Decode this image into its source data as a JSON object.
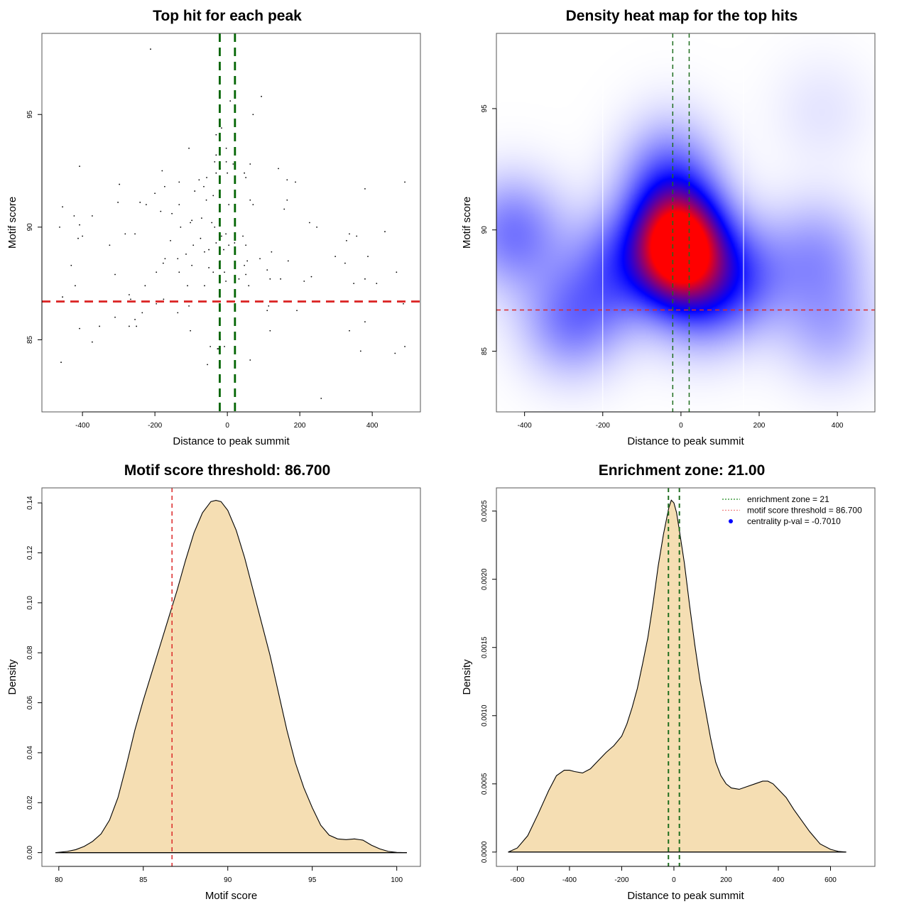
{
  "chart_data": [
    {
      "id": "scatter",
      "type": "scatter",
      "title": "Top hit for each peak",
      "xlabel": "Distance to peak summit",
      "ylabel": "Motif score",
      "xlim": [
        -512,
        533
      ],
      "ylim": [
        81.8,
        98.6
      ],
      "xticks": [
        -400,
        -200,
        0,
        200,
        400
      ],
      "yticks": [
        85,
        90,
        95
      ],
      "xtick_labels": [
        "-400",
        "-200",
        "0",
        "200",
        "400"
      ],
      "ytick_labels": [
        "85",
        "90",
        "95"
      ],
      "vlines": [
        {
          "x": -21,
          "color": "#006400",
          "style": "dashed"
        },
        {
          "x": 21,
          "color": "#006400",
          "style": "dashed"
        }
      ],
      "hlines": [
        {
          "y": 86.7,
          "color": "#dc2828",
          "style": "dashed"
        }
      ],
      "points": [
        [
          -212,
          97.9
        ],
        [
          94,
          95.8
        ],
        [
          71,
          95.0
        ],
        [
          8,
          95.6
        ],
        [
          -16,
          94.4
        ],
        [
          -31,
          94.1
        ],
        [
          -3,
          93.5
        ],
        [
          -106,
          93.5
        ],
        [
          -31,
          93.2
        ],
        [
          -35,
          92.9
        ],
        [
          -20,
          92.6
        ],
        [
          -3,
          92.9
        ],
        [
          63,
          92.8
        ],
        [
          16,
          92.8
        ],
        [
          -31,
          92.4
        ],
        [
          -180,
          92.5
        ],
        [
          -408,
          92.7
        ],
        [
          51,
          92.2
        ],
        [
          141,
          92.6
        ],
        [
          -133,
          92.0
        ],
        [
          165,
          92.1
        ],
        [
          188,
          92.0
        ],
        [
          -57,
          92.2
        ],
        [
          -90,
          91.6
        ],
        [
          0,
          92.4
        ],
        [
          47,
          92.4
        ],
        [
          -78,
          92.1
        ],
        [
          380,
          91.7
        ],
        [
          -298,
          91.9
        ],
        [
          -39,
          91.4
        ],
        [
          -58,
          91.2
        ],
        [
          -200,
          91.5
        ],
        [
          -173,
          91.8
        ],
        [
          -65,
          91.8
        ],
        [
          20,
          91.5
        ],
        [
          63,
          91.2
        ],
        [
          165,
          91.2
        ],
        [
          -133,
          91.0
        ],
        [
          4,
          91.0
        ],
        [
          157,
          90.8
        ],
        [
          -241,
          91.1
        ],
        [
          -224,
          91.0
        ],
        [
          -153,
          90.6
        ],
        [
          -184,
          90.7
        ],
        [
          -302,
          91.1
        ],
        [
          71,
          91.0
        ],
        [
          227,
          90.2
        ],
        [
          -455,
          90.9
        ],
        [
          -423,
          90.5
        ],
        [
          -373,
          90.5
        ],
        [
          -98,
          90.3
        ],
        [
          -71,
          90.4
        ],
        [
          247,
          90.0
        ],
        [
          337,
          89.7
        ],
        [
          435,
          89.8
        ],
        [
          -408,
          90.1
        ],
        [
          -102,
          90.2
        ],
        [
          -129,
          90.0
        ],
        [
          -400,
          89.6
        ],
        [
          -412,
          89.5
        ],
        [
          -255,
          89.7
        ],
        [
          -282,
          89.7
        ],
        [
          -463,
          90.0
        ],
        [
          -43,
          90.2
        ],
        [
          -35,
          90.0
        ],
        [
          -16,
          89.6
        ],
        [
          -4,
          89.7
        ],
        [
          4,
          89.2
        ],
        [
          20,
          89.3
        ],
        [
          51,
          89.2
        ],
        [
          -74,
          89.5
        ],
        [
          -31,
          89.3
        ],
        [
          -10,
          89.0
        ],
        [
          -51,
          89.0
        ],
        [
          -94,
          89.2
        ],
        [
          -157,
          89.4
        ],
        [
          -325,
          89.2
        ],
        [
          329,
          89.4
        ],
        [
          357,
          89.6
        ],
        [
          43,
          89.6
        ],
        [
          -63,
          88.9
        ],
        [
          -114,
          88.8
        ],
        [
          -177,
          88.4
        ],
        [
          -172,
          88.6
        ],
        [
          -137,
          88.6
        ],
        [
          -98,
          88.3
        ],
        [
          -51,
          88.2
        ],
        [
          -39,
          88.0
        ],
        [
          -20,
          88.5
        ],
        [
          -8,
          88.0
        ],
        [
          -133,
          88.0
        ],
        [
          55,
          88.5
        ],
        [
          47,
          88.3
        ],
        [
          -196,
          88.0
        ],
        [
          122,
          88.9
        ],
        [
          90,
          88.6
        ],
        [
          168,
          88.5
        ],
        [
          298,
          88.7
        ],
        [
          325,
          88.4
        ],
        [
          388,
          88.7
        ],
        [
          -431,
          88.3
        ],
        [
          -310,
          87.9
        ],
        [
          51,
          87.9
        ],
        [
          -63,
          87.4
        ],
        [
          -110,
          87.4
        ],
        [
          -4,
          87.6
        ],
        [
          20,
          87.8
        ],
        [
          32,
          87.7
        ],
        [
          59,
          87.4
        ],
        [
          118,
          87.7
        ],
        [
          147,
          87.7
        ],
        [
          110,
          88.1
        ],
        [
          232,
          87.8
        ],
        [
          212,
          87.6
        ],
        [
          412,
          87.5
        ],
        [
          380,
          87.7
        ],
        [
          349,
          87.5
        ],
        [
          -420,
          87.4
        ],
        [
          -227,
          87.4
        ],
        [
          -271,
          87.0
        ],
        [
          -267,
          86.8
        ],
        [
          -176,
          86.8
        ],
        [
          -455,
          86.9
        ],
        [
          -196,
          86.6
        ],
        [
          -106,
          86.5
        ],
        [
          20,
          86.5
        ],
        [
          114,
          86.5
        ],
        [
          192,
          86.3
        ],
        [
          110,
          86.3
        ],
        [
          -235,
          86.2
        ],
        [
          -255,
          85.9
        ],
        [
          -310,
          86.0
        ],
        [
          -353,
          85.6
        ],
        [
          -271,
          85.6
        ],
        [
          -251,
          85.6
        ],
        [
          -408,
          85.5
        ],
        [
          -102,
          85.4
        ],
        [
          118,
          85.4
        ],
        [
          337,
          85.4
        ],
        [
          -137,
          86.2
        ],
        [
          -20,
          85.0
        ],
        [
          -8,
          84.7
        ],
        [
          -27,
          84.6
        ],
        [
          -47,
          84.7
        ],
        [
          -24,
          84.6
        ],
        [
          368,
          84.5
        ],
        [
          463,
          84.4
        ],
        [
          490,
          84.7
        ],
        [
          380,
          85.8
        ],
        [
          -373,
          84.9
        ],
        [
          -459,
          84.0
        ],
        [
          -55,
          83.9
        ],
        [
          63,
          84.1
        ],
        [
          259,
          82.4
        ],
        [
          486,
          86.6
        ],
        [
          467,
          88.0
        ],
        [
          490,
          92.0
        ]
      ]
    },
    {
      "id": "heatmap",
      "type": "heatmap",
      "title": "Density heat map for the top hits",
      "xlabel": "Distance to peak summit",
      "ylabel": "Motif score",
      "xlim": [
        -472,
        496
      ],
      "ylim": [
        82.5,
        98.1
      ],
      "xticks": [
        -400,
        -200,
        0,
        200,
        400
      ],
      "yticks": [
        85,
        90,
        95
      ],
      "xtick_labels": [
        "-400",
        "-200",
        "0",
        "200",
        "400"
      ],
      "ytick_labels": [
        "85",
        "90",
        "95"
      ],
      "colorscale": [
        "#ffffff",
        "#0000ff",
        "#ff0000"
      ],
      "vlines": [
        {
          "x": -21,
          "color": "#1e6e1e",
          "style": "dashed"
        },
        {
          "x": 21,
          "color": "#1e6e1e",
          "style": "dashed"
        }
      ],
      "white_vlines": [
        -200,
        160
      ],
      "hlines": [
        {
          "y": 86.7,
          "color": "#dc2828",
          "style": "dashed"
        }
      ],
      "density_peaks": [
        {
          "x": -8,
          "y": 89.3,
          "weight": 1.0
        },
        {
          "x": -30,
          "y": 91.5,
          "weight": 0.45
        },
        {
          "x": 40,
          "y": 88.2,
          "weight": 0.45
        },
        {
          "x": -430,
          "y": 89.9,
          "weight": 0.32
        },
        {
          "x": -280,
          "y": 86.3,
          "weight": 0.3
        },
        {
          "x": 350,
          "y": 89.0,
          "weight": 0.22
        },
        {
          "x": 380,
          "y": 86.0,
          "weight": 0.18
        },
        {
          "x": 360,
          "y": 94.9,
          "weight": 0.06
        },
        {
          "x": -150,
          "y": 88.5,
          "weight": 0.35
        },
        {
          "x": 150,
          "y": 88.0,
          "weight": 0.3
        }
      ]
    },
    {
      "id": "density-score",
      "type": "area",
      "title": "Motif score threshold: 86.700",
      "xlabel": "Motif score",
      "ylabel": "Density",
      "xlim": [
        79,
        101.4
      ],
      "ylim": [
        -0.0055,
        0.146
      ],
      "xticks": [
        80,
        85,
        90,
        95,
        100
      ],
      "yticks": [
        0.0,
        0.02,
        0.04,
        0.06,
        0.08,
        0.1,
        0.12,
        0.14
      ],
      "xtick_labels": [
        "80",
        "85",
        "90",
        "95",
        "100"
      ],
      "ytick_labels": [
        "0.00",
        "0.02",
        "0.04",
        "0.06",
        "0.08",
        "0.10",
        "0.12",
        "0.14"
      ],
      "fill": "#f5deb3",
      "vlines": [
        {
          "x": 86.7,
          "color": "#dc2828",
          "style": "dashed"
        }
      ],
      "x": [
        79.8,
        80.5,
        81.0,
        81.5,
        82.0,
        82.5,
        83.0,
        83.5,
        84.0,
        84.5,
        85.0,
        85.5,
        86.0,
        86.5,
        87.0,
        87.5,
        88.0,
        88.5,
        89.0,
        89.3,
        89.6,
        90.0,
        90.5,
        91.0,
        91.5,
        92.0,
        92.5,
        93.0,
        93.5,
        94.0,
        94.5,
        95.0,
        95.5,
        96.0,
        96.5,
        97.0,
        97.5,
        98.0,
        98.5,
        99.0,
        99.5,
        100.0,
        100.6
      ],
      "y": [
        0.0,
        0.0005,
        0.0012,
        0.0025,
        0.0045,
        0.0075,
        0.013,
        0.022,
        0.035,
        0.049,
        0.061,
        0.072,
        0.083,
        0.094,
        0.105,
        0.117,
        0.128,
        0.136,
        0.1405,
        0.141,
        0.1405,
        0.137,
        0.129,
        0.118,
        0.105,
        0.092,
        0.079,
        0.064,
        0.049,
        0.036,
        0.026,
        0.018,
        0.011,
        0.007,
        0.0055,
        0.0052,
        0.0055,
        0.005,
        0.003,
        0.0015,
        0.0005,
        0.0001,
        0.0
      ]
    },
    {
      "id": "density-distance",
      "type": "area",
      "title": "Enrichment zone: 21.00",
      "xlabel": "Distance to peak summit",
      "ylabel": "Density",
      "xlim": [
        -680,
        770
      ],
      "ylim": [
        -0.000105,
        0.00267
      ],
      "xticks": [
        -600,
        -400,
        -200,
        0,
        200,
        400,
        600
      ],
      "yticks": [
        0.0,
        0.0005,
        0.001,
        0.0015,
        0.002,
        0.0025
      ],
      "xtick_labels": [
        "-600",
        "-400",
        "-200",
        "0",
        "200",
        "400",
        "600"
      ],
      "ytick_labels": [
        "0.0000",
        "0.0005",
        "0.0010",
        "0.0015",
        "0.0020",
        "0.0025"
      ],
      "fill": "#f5deb3",
      "vlines": [
        {
          "x": -21,
          "color": "#1e6e1e",
          "style": "dashed"
        },
        {
          "x": 21,
          "color": "#1e6e1e",
          "style": "dashed"
        }
      ],
      "x": [
        -635,
        -600,
        -560,
        -520,
        -480,
        -450,
        -420,
        -400,
        -380,
        -350,
        -320,
        -290,
        -260,
        -230,
        -200,
        -180,
        -160,
        -140,
        -120,
        -100,
        -80,
        -60,
        -40,
        -20,
        -10,
        0,
        10,
        20,
        40,
        60,
        80,
        100,
        120,
        140,
        160,
        180,
        200,
        220,
        250,
        280,
        310,
        340,
        360,
        380,
        400,
        430,
        460,
        490,
        520,
        560,
        600,
        630,
        660
      ],
      "y": [
        0.0,
        3e-05,
        0.00012,
        0.00028,
        0.00045,
        0.00056,
        0.0006,
        0.0006,
        0.00059,
        0.00058,
        0.00061,
        0.00067,
        0.00073,
        0.00078,
        0.00085,
        0.00094,
        0.00106,
        0.0012,
        0.00138,
        0.00157,
        0.00182,
        0.0021,
        0.00233,
        0.00252,
        0.00258,
        0.00256,
        0.00249,
        0.00237,
        0.00212,
        0.00181,
        0.00152,
        0.00126,
        0.00105,
        0.00084,
        0.00066,
        0.00056,
        0.0005,
        0.00047,
        0.00046,
        0.00048,
        0.0005,
        0.00052,
        0.00052,
        0.0005,
        0.00046,
        0.0004,
        0.00031,
        0.00023,
        0.00015,
        6e-05,
        2e-05,
        5e-06,
        0.0
      ]
    }
  ],
  "legend": {
    "items": [
      {
        "label": "enrichment zone = 21",
        "color": "#1e8c1e",
        "kind": "dotted-line"
      },
      {
        "label": "motif score threshold = 86.700",
        "color": "#f08080",
        "kind": "dotted-line"
      },
      {
        "label": "centrality p-val = -0.7010",
        "color": "#0000ff",
        "kind": "point"
      }
    ]
  }
}
